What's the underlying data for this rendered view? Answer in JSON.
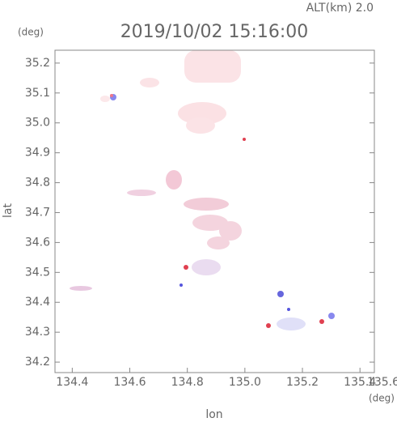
{
  "chart_data": {
    "type": "map",
    "title": "2019/10/02 15:16:00",
    "subtitle": "ALT(km) 2.0",
    "x_label": "lon",
    "x_unit": "(deg)",
    "y_label": "lat",
    "y_unit": "(deg)",
    "xlim": [
      134.34,
      135.45
    ],
    "ylim": [
      34.165,
      35.243
    ],
    "xticks": [
      134.4,
      134.6,
      134.8,
      {
        "value": 135.0,
        "label": "135.0"
      },
      135.2,
      135.4,
      135.6
    ],
    "yticks": [
      34.2,
      34.3,
      34.4,
      34.5,
      34.6,
      34.7,
      34.8,
      34.9,
      {
        "value": 35.0,
        "label": "35.0"
      },
      35.1,
      35.2
    ]
  }
}
